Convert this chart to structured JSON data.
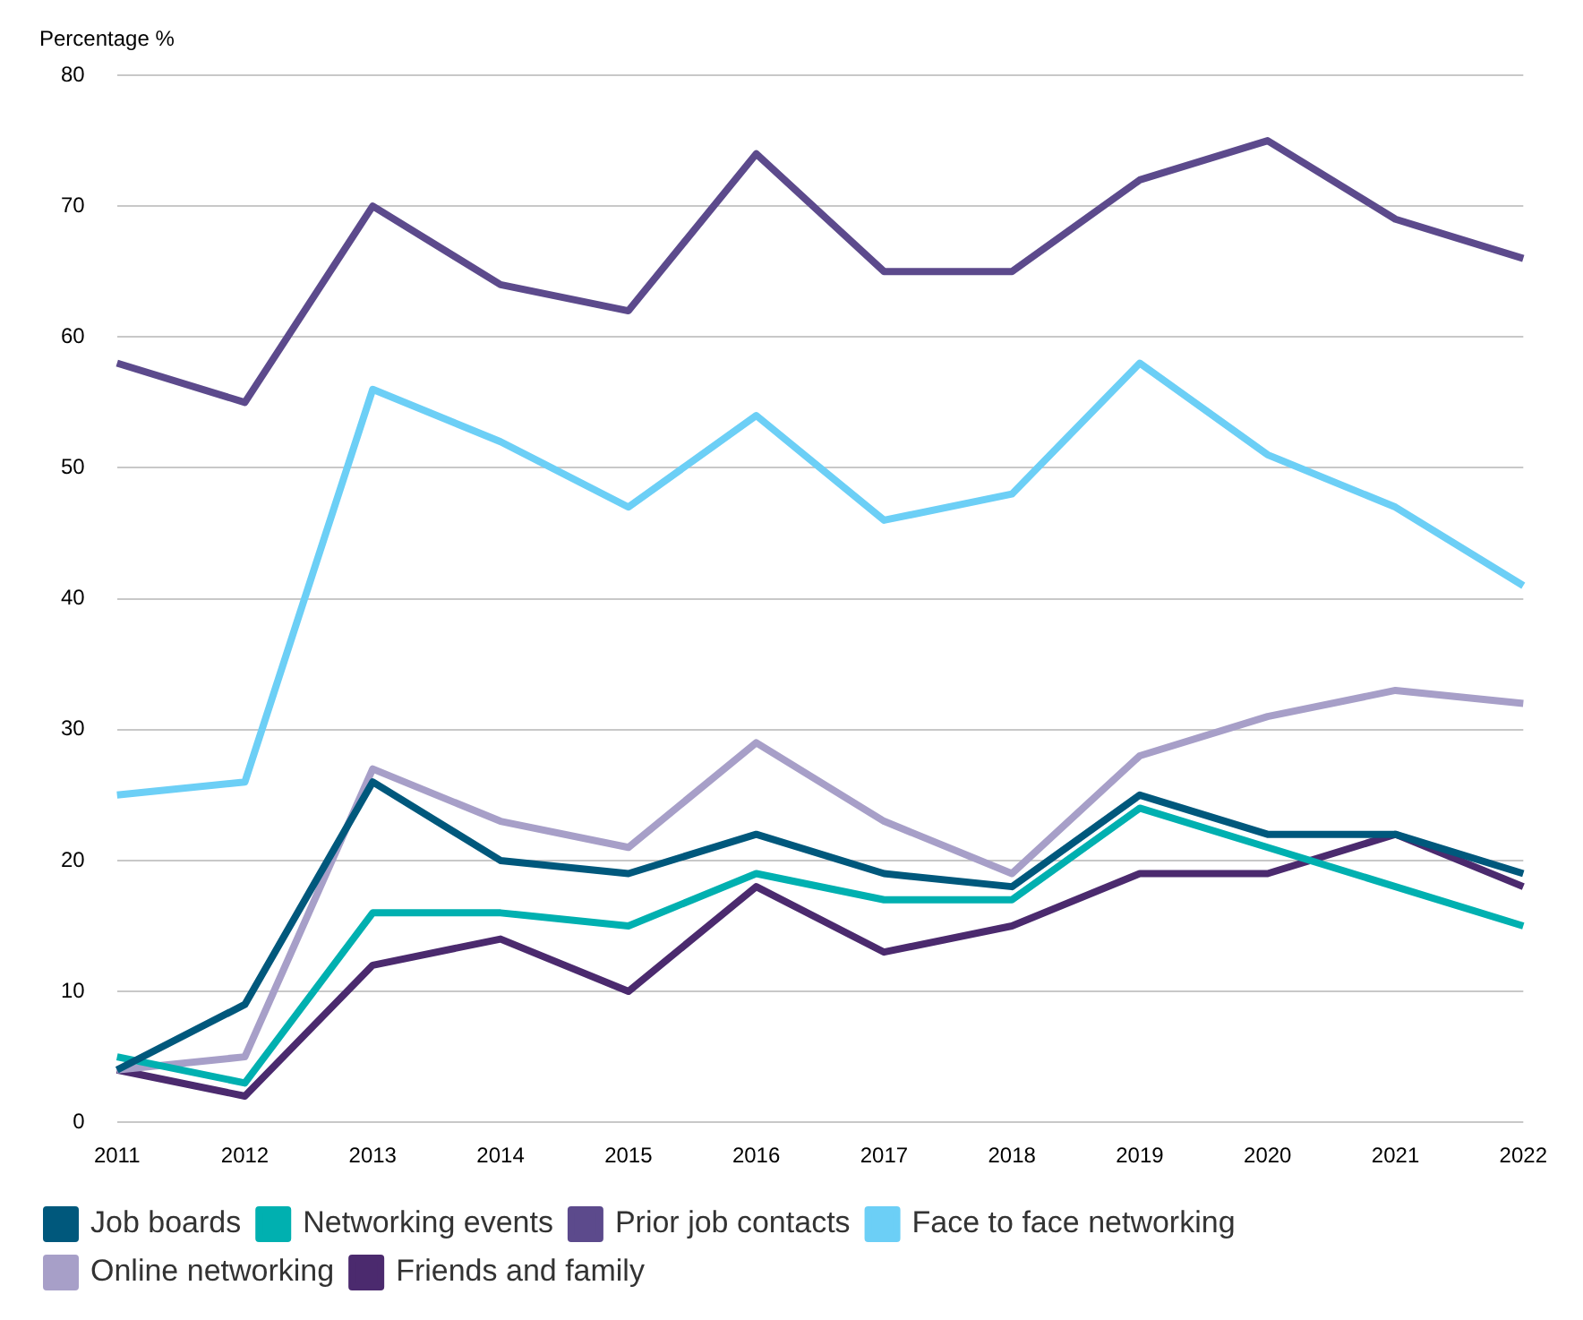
{
  "chart_data": {
    "type": "line",
    "ylabel": "Percentage %",
    "categories": [
      "2011",
      "2012",
      "2013",
      "2014",
      "2015",
      "2016",
      "2017",
      "2018",
      "2019",
      "2020",
      "2021",
      "2022"
    ],
    "series": [
      {
        "name": "Job boards",
        "color": "#00587c",
        "values": [
          4,
          9,
          26,
          20,
          19,
          22,
          19,
          18,
          25,
          22,
          22,
          19
        ]
      },
      {
        "name": "Networking events",
        "color": "#00b0b0",
        "values": [
          5,
          3,
          16,
          16,
          15,
          19,
          17,
          17,
          24,
          21,
          18,
          15
        ]
      },
      {
        "name": "Prior job contacts",
        "color": "#5c4a8c",
        "values": [
          58,
          55,
          70,
          64,
          62,
          74,
          65,
          65,
          72,
          75,
          69,
          66
        ]
      },
      {
        "name": "Face to face networking",
        "color": "#6ccff6",
        "values": [
          25,
          26,
          56,
          52,
          47,
          54,
          46,
          48,
          58,
          51,
          47,
          41
        ]
      },
      {
        "name": "Online networking",
        "color": "#a79fc8",
        "values": [
          4,
          5,
          27,
          23,
          21,
          29,
          23,
          19,
          28,
          31,
          33,
          32
        ]
      },
      {
        "name": "Friends and family",
        "color": "#4b2a6e",
        "values": [
          4,
          2,
          12,
          14,
          10,
          18,
          13,
          15,
          19,
          19,
          22,
          18
        ]
      }
    ],
    "ylim": [
      0,
      80
    ],
    "yticks": [
      0,
      10,
      20,
      30,
      40,
      50,
      60,
      70,
      80
    ],
    "grid": "y",
    "legend": "bottom",
    "marker": "none",
    "line_style": "solid"
  }
}
